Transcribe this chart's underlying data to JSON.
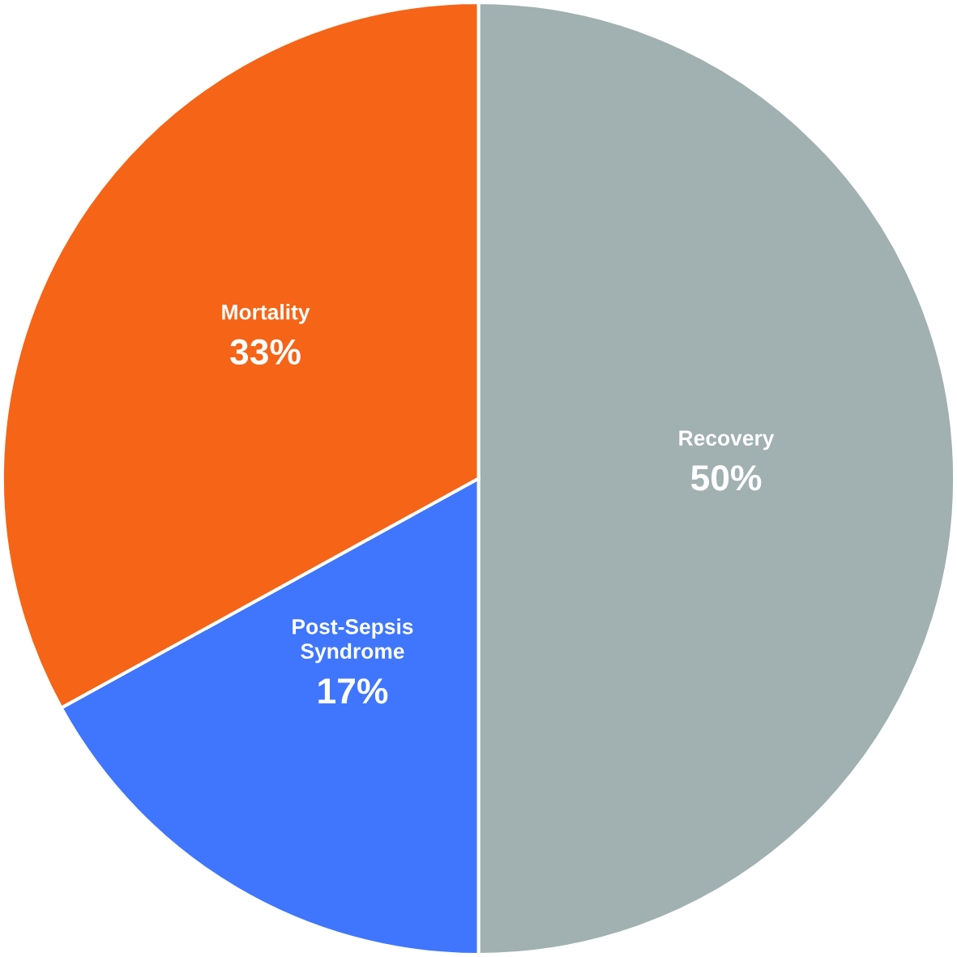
{
  "chart_data": {
    "type": "pie",
    "categories": [
      "Recovery",
      "Post-Sepsis\nSyndrome",
      "Mortality"
    ],
    "values": [
      50,
      17,
      33
    ],
    "colors": [
      "#a1b0b0",
      "#4076fe",
      "#f56417"
    ],
    "value_labels": [
      "50%",
      "17%",
      "33%"
    ]
  }
}
